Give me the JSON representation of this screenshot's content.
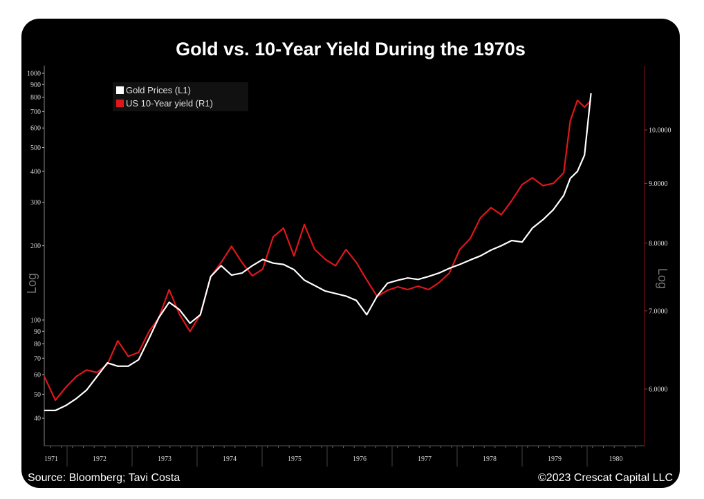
{
  "chart_data": {
    "type": "line",
    "title": "Gold vs. 10-Year Yield During the 1970s",
    "source": "Source: Bloomberg; Tavi Costa",
    "copyright": "©2023 Crescat Capital LLC",
    "left_axis_label": "Log",
    "right_axis_label": "Log",
    "left_scale": "log",
    "right_scale": "log",
    "left_ylim": [
      32,
      1070
    ],
    "right_ylim": [
      5.3,
      11.2
    ],
    "left_ticks": [
      40,
      50,
      60,
      70,
      80,
      90,
      100,
      200,
      300,
      400,
      500,
      600,
      700,
      800,
      900,
      1000
    ],
    "right_ticks": [
      "6.0000",
      "7.0000",
      "8.0000",
      "9.0000",
      "10.0000"
    ],
    "x_ticks": [
      "1971",
      "1972",
      "1973",
      "1974",
      "1975",
      "1976",
      "1977",
      "1978",
      "1979",
      "1980"
    ],
    "xlim": [
      1971.65,
      1981.0
    ],
    "grid": false,
    "legend_placement": "top-left",
    "x": [
      1971.65,
      1971.82,
      1971.98,
      1972.14,
      1972.3,
      1972.46,
      1972.62,
      1972.78,
      1972.94,
      1973.1,
      1973.26,
      1973.41,
      1973.57,
      1973.73,
      1973.89,
      1974.05,
      1974.21,
      1974.37,
      1974.53,
      1974.69,
      1974.85,
      1975.01,
      1975.17,
      1975.33,
      1975.49,
      1975.65,
      1975.81,
      1975.97,
      1976.13,
      1976.29,
      1976.45,
      1976.61,
      1976.77,
      1976.93,
      1977.09,
      1977.24,
      1977.4,
      1977.56,
      1977.72,
      1977.88,
      1978.04,
      1978.2,
      1978.36,
      1978.52,
      1978.68,
      1978.84,
      1979.0,
      1979.16,
      1979.32,
      1979.48,
      1979.64,
      1979.74,
      1979.85,
      1979.96,
      1980.06
    ],
    "series": [
      {
        "name": "Gold Prices (L1)",
        "axis": "left",
        "color": "#ffffff",
        "values": [
          43,
          43,
          45,
          48,
          52,
          59,
          67,
          65,
          65,
          69,
          84,
          102,
          118,
          110,
          97,
          105,
          150,
          166,
          152,
          155,
          166,
          176,
          170,
          168,
          160,
          145,
          138,
          131,
          128,
          125,
          120,
          105,
          125,
          141,
          145,
          148,
          146,
          150,
          155,
          162,
          168,
          175,
          182,
          192,
          200,
          210,
          207,
          236,
          255,
          280,
          320,
          375,
          400,
          466,
          830
        ]
      },
      {
        "name": "US 10-Year yield (R1)",
        "axis": "right",
        "color": "#e0161b",
        "values": [
          6.15,
          5.87,
          6.02,
          6.15,
          6.23,
          6.2,
          6.3,
          6.6,
          6.4,
          6.45,
          6.72,
          6.9,
          7.3,
          6.95,
          6.72,
          6.95,
          7.49,
          7.7,
          7.95,
          7.7,
          7.5,
          7.6,
          8.1,
          8.24,
          7.8,
          8.3,
          7.9,
          7.75,
          7.65,
          7.9,
          7.7,
          7.44,
          7.2,
          7.29,
          7.34,
          7.3,
          7.35,
          7.3,
          7.4,
          7.54,
          7.9,
          8.07,
          8.41,
          8.58,
          8.46,
          8.7,
          8.98,
          9.1,
          8.96,
          9.0,
          9.19,
          10.18,
          10.6,
          10.46,
          10.6
        ]
      }
    ]
  }
}
